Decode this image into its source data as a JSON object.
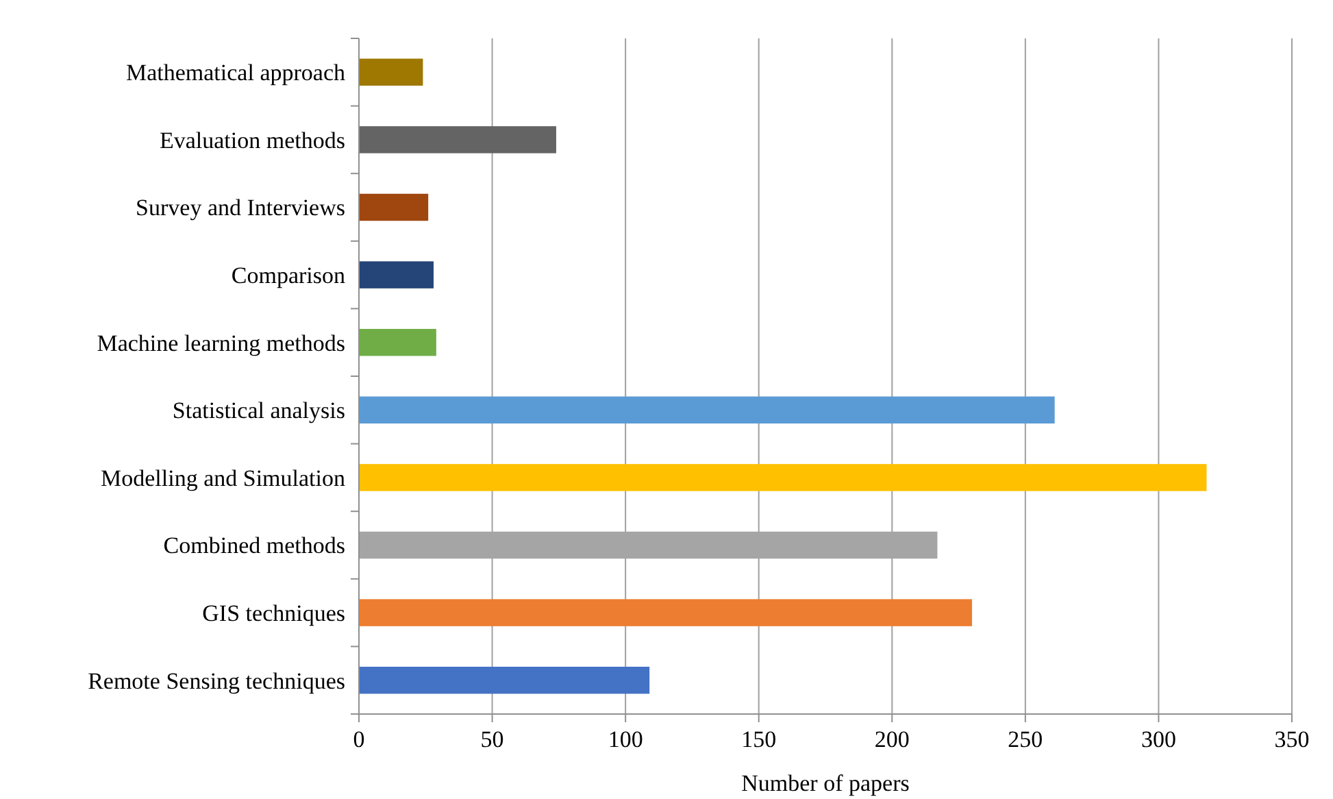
{
  "chart_data": {
    "type": "bar",
    "orientation": "horizontal",
    "xlabel": "Number of papers",
    "categories": [
      "Mathematical approach",
      "Evaluation methods",
      "Survey and Interviews",
      "Comparison",
      "Machine learning methods",
      "Statistical analysis",
      "Modelling and Simulation",
      "Combined methods",
      "GIS techniques",
      "Remote Sensing techniques"
    ],
    "values": [
      24,
      74,
      26,
      28,
      29,
      261,
      318,
      217,
      230,
      109
    ],
    "colors": [
      "#9e7800",
      "#646464",
      "#a0460f",
      "#254478",
      "#70ad47",
      "#5b9bd5",
      "#ffc000",
      "#a5a5a5",
      "#ed7d31",
      "#4472c4"
    ],
    "xlim": [
      0,
      350
    ],
    "xticks": [
      0,
      50,
      100,
      150,
      200,
      250,
      300,
      350
    ],
    "grid": "x"
  }
}
